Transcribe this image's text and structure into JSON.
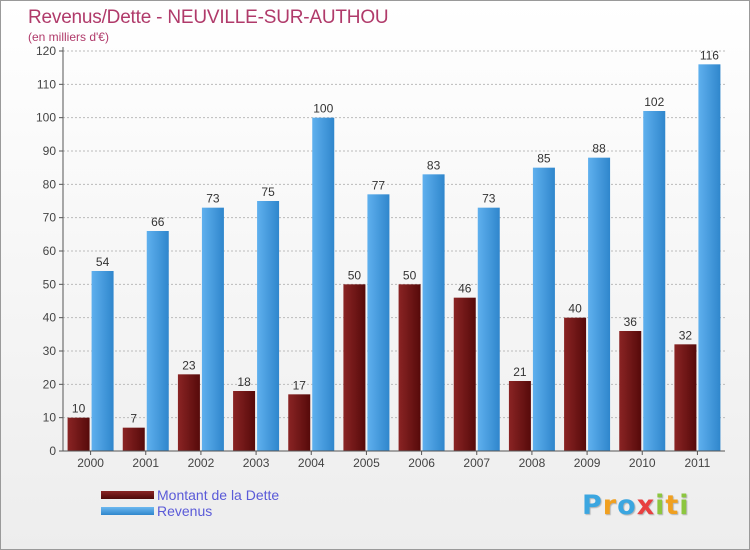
{
  "title": "Revenus/Dette - NEUVILLE-SUR-AUTHOU",
  "subtitle": "(en milliers d'€)",
  "colors": {
    "dette": "#6e1414",
    "revenus": "#4a9ee0",
    "axis": "#555555",
    "grid": "#bbbbbb",
    "title": "#b03a6a",
    "legend_text": "#5a5ad8"
  },
  "logo": {
    "letters": [
      "P",
      "r",
      "o",
      "x",
      "i",
      "t",
      "i"
    ],
    "colors": [
      "#3ba6e0",
      "#f0a020",
      "#3ba6e0",
      "#e84040",
      "#8cc63f",
      "#f0a020",
      "#8cc63f"
    ]
  },
  "chart_data": {
    "type": "bar",
    "categories": [
      "2000",
      "2001",
      "2002",
      "2003",
      "2004",
      "2005",
      "2006",
      "2007",
      "2008",
      "2009",
      "2010",
      "2011"
    ],
    "series": [
      {
        "name": "Montant de la Dette",
        "values": [
          10,
          7,
          23,
          18,
          17,
          50,
          50,
          46,
          21,
          40,
          36,
          32
        ]
      },
      {
        "name": "Revenus",
        "values": [
          54,
          66,
          73,
          75,
          100,
          77,
          83,
          73,
          85,
          88,
          102,
          116
        ]
      }
    ],
    "ylim": [
      0,
      120
    ],
    "yticks": [
      0,
      10,
      20,
      30,
      40,
      50,
      60,
      70,
      80,
      90,
      100,
      110,
      120
    ],
    "grid": true,
    "legend_position": "bottom-left",
    "data_labels": true
  }
}
